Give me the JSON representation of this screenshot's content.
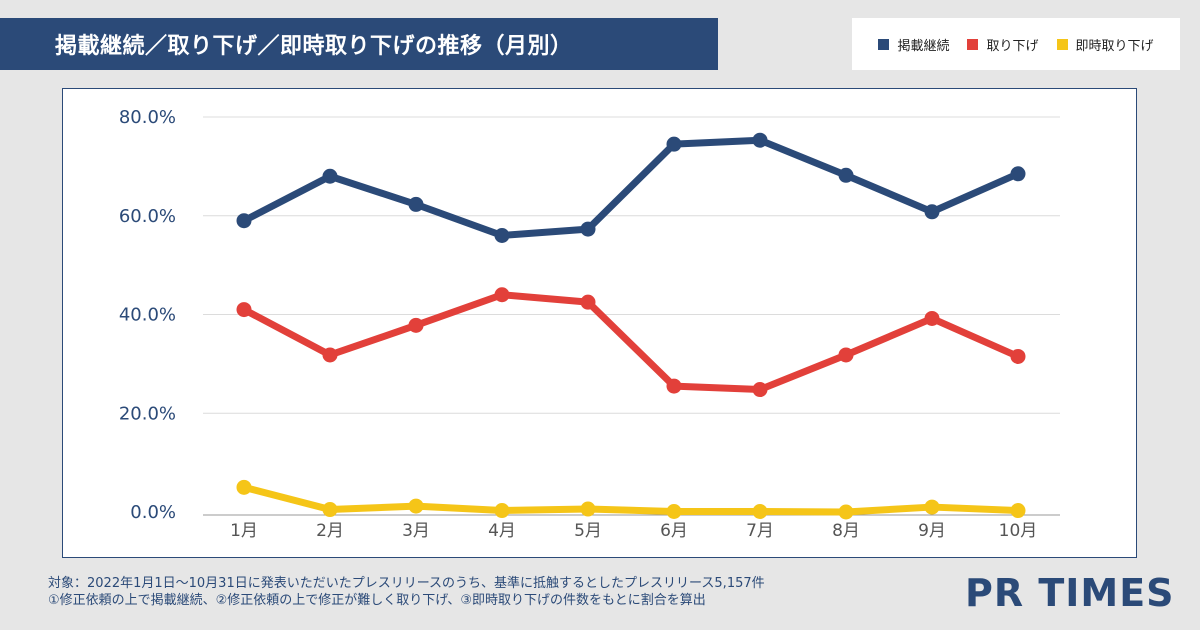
{
  "title": "掲載継続／取り下げ／即時取り下げの推移（月別）",
  "legend": [
    {
      "label": "掲載継続",
      "color": "#2b4a78"
    },
    {
      "label": "取り下げ",
      "color": "#e2403a"
    },
    {
      "label": "即時取り下げ",
      "color": "#f5c518"
    }
  ],
  "footnote": {
    "line1": "対象：2022年1月1日～10月31日に発表いただいたプレスリリースのうち、基準に抵触するとしたプレスリリース5,157件",
    "line2": "①修正依頼の上で掲載継続、②修正依頼の上で修正が難しく取り下げ、③即時取り下げの件数をもとに割合を算出"
  },
  "logo": "PR TIMES",
  "chart_data": {
    "type": "line",
    "title": "掲載継続／取り下げ／即時取り下げの推移（月別）",
    "categories": [
      "1月",
      "2月",
      "3月",
      "4月",
      "5月",
      "6月",
      "7月",
      "8月",
      "9月",
      "10月"
    ],
    "y_ticks": [
      "0.0%",
      "20.0%",
      "40.0%",
      "60.0%",
      "80.0%"
    ],
    "ylim": [
      0,
      80
    ],
    "series": [
      {
        "name": "掲載継続",
        "color": "#2b4a78",
        "values": [
          59.0,
          68.0,
          62.3,
          56.0,
          57.3,
          74.5,
          75.3,
          68.2,
          60.8,
          68.5
        ]
      },
      {
        "name": "取り下げ",
        "color": "#e2403a",
        "values": [
          41.0,
          31.8,
          37.8,
          44.0,
          42.5,
          25.5,
          24.8,
          31.8,
          39.2,
          31.5
        ]
      },
      {
        "name": "即時取り下げ",
        "color": "#f5c518",
        "values": [
          5.0,
          0.5,
          1.2,
          0.3,
          0.6,
          0.1,
          0.1,
          0.0,
          1.0,
          0.3
        ]
      }
    ]
  }
}
